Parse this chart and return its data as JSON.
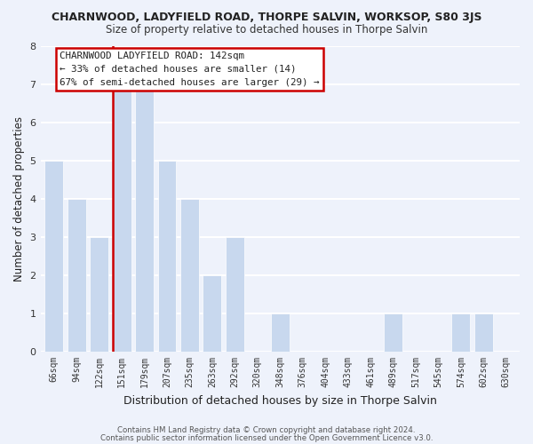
{
  "title": "CHARNWOOD, LADYFIELD ROAD, THORPE SALVIN, WORKSOP, S80 3JS",
  "subtitle": "Size of property relative to detached houses in Thorpe Salvin",
  "xlabel": "Distribution of detached houses by size in Thorpe Salvin",
  "ylabel": "Number of detached properties",
  "bar_labels": [
    "66sqm",
    "94sqm",
    "122sqm",
    "151sqm",
    "179sqm",
    "207sqm",
    "235sqm",
    "263sqm",
    "292sqm",
    "320sqm",
    "348sqm",
    "376sqm",
    "404sqm",
    "433sqm",
    "461sqm",
    "489sqm",
    "517sqm",
    "545sqm",
    "574sqm",
    "602sqm",
    "630sqm"
  ],
  "bar_values": [
    5,
    4,
    3,
    7,
    7,
    5,
    4,
    2,
    3,
    0,
    1,
    0,
    0,
    0,
    0,
    1,
    0,
    0,
    1,
    1,
    0
  ],
  "bar_color": "#c8d8ee",
  "bar_edge_color": "#ffffff",
  "background_color": "#eef2fb",
  "grid_color": "#ffffff",
  "annotation_text_line1": "CHARNWOOD LADYFIELD ROAD: 142sqm",
  "annotation_text_line2": "← 33% of detached houses are smaller (14)",
  "annotation_text_line3": "67% of semi-detached houses are larger (29) →",
  "annotation_box_facecolor": "#ffffff",
  "annotation_box_edgecolor": "#cc0000",
  "marker_line_color": "#cc0000",
  "ylim": [
    0,
    8
  ],
  "yticks": [
    0,
    1,
    2,
    3,
    4,
    5,
    6,
    7,
    8
  ],
  "footer_line1": "Contains HM Land Registry data © Crown copyright and database right 2024.",
  "footer_line2": "Contains public sector information licensed under the Open Government Licence v3.0."
}
